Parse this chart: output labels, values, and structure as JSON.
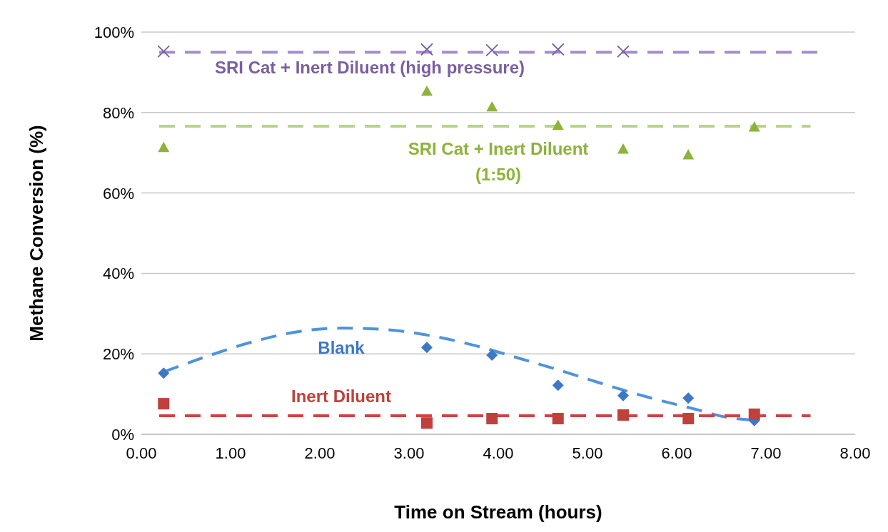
{
  "chart_data": {
    "type": "scatter",
    "xlabel": "Time on Stream (hours)",
    "ylabel": "Methane Conversion (%)",
    "xlim": [
      0,
      8
    ],
    "ylim": [
      0,
      100
    ],
    "xticks": [
      {
        "value": 0,
        "label": "0.00"
      },
      {
        "value": 1,
        "label": "1.00"
      },
      {
        "value": 2,
        "label": "2.00"
      },
      {
        "value": 3,
        "label": "3.00"
      },
      {
        "value": 4,
        "label": "4.00"
      },
      {
        "value": 5,
        "label": "5.00"
      },
      {
        "value": 6,
        "label": "6.00"
      },
      {
        "value": 7,
        "label": "7.00"
      },
      {
        "value": 8,
        "label": "8.00"
      }
    ],
    "yticks": [
      {
        "value": 0,
        "label": "0%"
      },
      {
        "value": 20,
        "label": "20%"
      },
      {
        "value": 40,
        "label": "40%"
      },
      {
        "value": 60,
        "label": "60%"
      },
      {
        "value": 80,
        "label": "80%"
      },
      {
        "value": 100,
        "label": "100%"
      }
    ],
    "grid": "y",
    "legend": false,
    "series": [
      {
        "type": "line",
        "color": "#a58bcc",
        "line_style": "dashed",
        "marker": "none",
        "x": [
          0.2,
          7.6
        ],
        "values": [
          95,
          95
        ]
      },
      {
        "type": "line",
        "color": "#b5d68a",
        "line_style": "dashed",
        "marker": "none",
        "x": [
          0.2,
          7.5
        ],
        "values": [
          76.6,
          76.6
        ]
      },
      {
        "type": "line",
        "color": "#4f93dc",
        "line_style": "dashed",
        "marker": "none",
        "x": [
          0.25,
          0.75,
          1.25,
          1.75,
          2.25,
          2.75,
          3.25,
          3.75,
          4.25,
          4.75,
          5.25,
          5.75,
          6.25,
          6.5,
          6.87
        ],
        "values": [
          15.5,
          19.5,
          23,
          25.5,
          26.4,
          26,
          24.5,
          22,
          18.8,
          15.5,
          12,
          8.8,
          6,
          4.5,
          3.5
        ]
      },
      {
        "type": "line",
        "color": "#d0423f",
        "line_style": "dashed",
        "marker": "none",
        "x": [
          0.2,
          7.5
        ],
        "values": [
          4.6,
          4.6
        ]
      },
      {
        "name": "SRI Cat + Inert Diluent (high pressure)",
        "type": "scatter",
        "color": "#7a5fa0",
        "marker": "cross",
        "x": [
          0.25,
          3.2,
          3.93,
          4.67,
          5.4
        ],
        "values": [
          95.2,
          95.7,
          95.5,
          95.7,
          95.2
        ]
      },
      {
        "name": "SRI Cat + Inert Diluent\n(1:50)",
        "type": "scatter",
        "color": "#8db33a",
        "marker": "triangle",
        "x": [
          0.25,
          3.2,
          3.93,
          4.67,
          5.4,
          6.13,
          6.87
        ],
        "values": [
          71.3,
          85.3,
          81.4,
          76.8,
          70.9,
          69.5,
          76.4
        ]
      },
      {
        "name": "Blank",
        "type": "scatter",
        "color": "#3d78c4",
        "marker": "diamond",
        "x": [
          0.25,
          3.2,
          3.93,
          4.67,
          5.4,
          6.13,
          6.87
        ],
        "values": [
          15.2,
          21.6,
          19.7,
          12.2,
          9.6,
          9.0,
          3.4
        ]
      },
      {
        "name": "Inert Diluent",
        "type": "scatter",
        "color": "#c0413c",
        "marker": "square",
        "x": [
          0.25,
          3.2,
          3.93,
          4.67,
          5.4,
          6.13,
          6.87
        ],
        "values": [
          7.6,
          2.8,
          3.9,
          3.9,
          4.8,
          3.9,
          5.0
        ]
      }
    ]
  }
}
